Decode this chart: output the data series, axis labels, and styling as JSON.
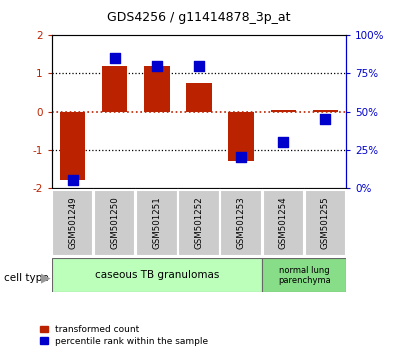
{
  "title": "GDS4256 / g11414878_3p_at",
  "samples": [
    "GSM501249",
    "GSM501250",
    "GSM501251",
    "GSM501252",
    "GSM501253",
    "GSM501254",
    "GSM501255"
  ],
  "red_values": [
    -1.8,
    1.2,
    1.2,
    0.75,
    -1.3,
    0.05,
    0.05
  ],
  "blue_values": [
    0.05,
    0.85,
    0.8,
    0.8,
    0.2,
    0.3,
    0.45
  ],
  "ylim_left": [
    -2,
    2
  ],
  "ylim_right": [
    0,
    1
  ],
  "yticks_left": [
    -2,
    -1,
    0,
    1,
    2
  ],
  "yticks_right": [
    0,
    0.25,
    0.5,
    0.75,
    1.0
  ],
  "ytick_labels_right": [
    "0%",
    "25%",
    "50%",
    "75%",
    "100%"
  ],
  "ytick_labels_left": [
    "-2",
    "-1",
    "0",
    "1",
    "2"
  ],
  "red_color": "#bb2200",
  "blue_color": "#0000cc",
  "bar_width": 0.6,
  "blue_marker_size": 55,
  "group1_label": "caseous TB granulomas",
  "group2_label": "normal lung\nparenchyma",
  "group1_color": "#bbffbb",
  "group2_color": "#88dd88",
  "cell_type_label": "cell type",
  "legend_red": "transformed count",
  "legend_blue": "percentile rank within the sample",
  "tick_label_bg": "#cccccc",
  "title_fontsize": 9
}
